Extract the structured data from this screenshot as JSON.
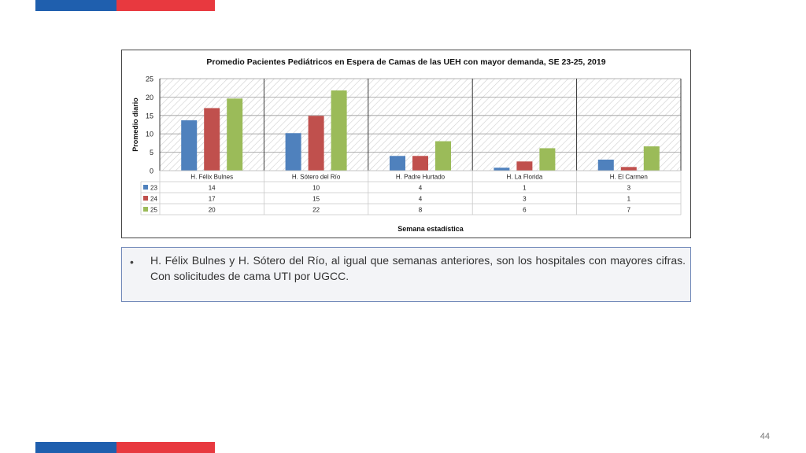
{
  "page_number": "44",
  "note": {
    "bullet": "•",
    "text": "H. Félix Bulnes y H. Sótero del Río, al igual que semanas anteriores, son los hospitales con mayores cifras. Con solicitudes de cama UTI por UGCC."
  },
  "colors": {
    "brand_blue": "#1f5fae",
    "brand_red": "#e8393f",
    "series_23": "#4f81bd",
    "series_24": "#c0504d",
    "series_25": "#9bbb59"
  },
  "chart_data": {
    "type": "bar",
    "title": "Promedio Pacientes Pediátricos en Espera de Camas de las UEH con mayor demanda, SE 23-25, 2019",
    "xlabel": "Semana estadística",
    "ylabel": "Promedio diario",
    "ylim": [
      0,
      25
    ],
    "yticks": [
      0,
      5,
      10,
      15,
      20,
      25
    ],
    "categories": [
      "H. Félix Bulnes",
      "H. Sótero del Río",
      "H. Padre Hurtado",
      "H. La Florida",
      "H. El Carmen"
    ],
    "series": [
      {
        "name": "23",
        "values": [
          13.7,
          10.2,
          4.0,
          0.8,
          3.0
        ],
        "labels": [
          "14",
          "10",
          "4",
          "1",
          "3"
        ],
        "color": "#4f81bd"
      },
      {
        "name": "24",
        "values": [
          17.0,
          14.9,
          4.0,
          2.5,
          1.0
        ],
        "labels": [
          "17",
          "15",
          "4",
          "3",
          "1"
        ],
        "color": "#c0504d"
      },
      {
        "name": "25",
        "values": [
          19.6,
          21.8,
          8.0,
          6.1,
          6.6
        ],
        "labels": [
          "20",
          "22",
          "8",
          "6",
          "7"
        ],
        "color": "#9bbb59"
      }
    ],
    "grid": true,
    "legend": "data-table"
  }
}
